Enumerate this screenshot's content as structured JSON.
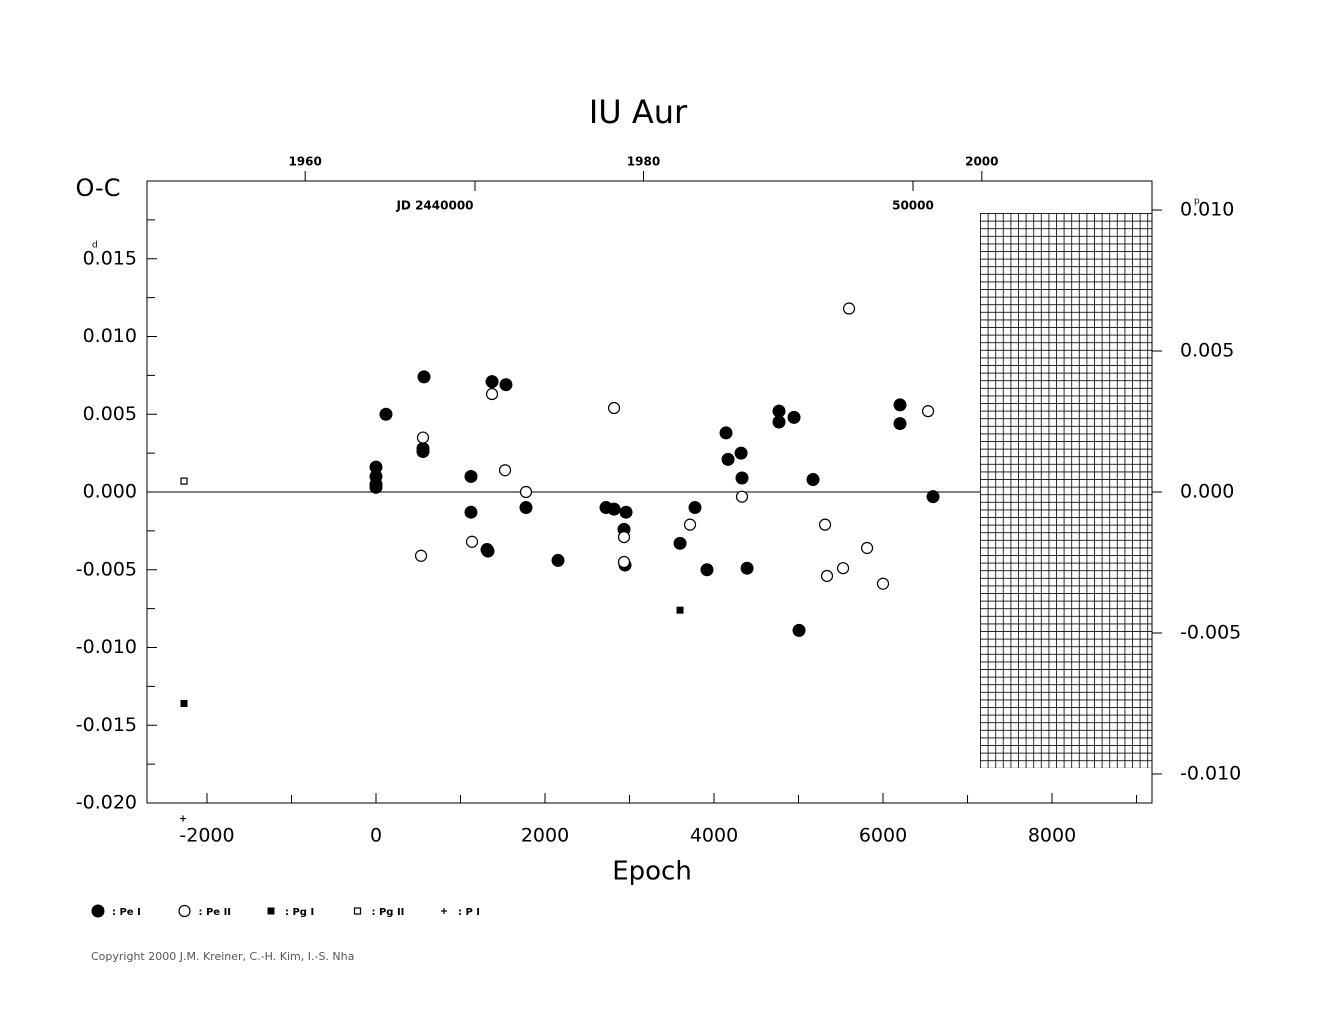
{
  "chart_data": {
    "type": "scatter",
    "title": "IU Aur",
    "y_label": "O-C",
    "y_unit": "d",
    "y2_unit": "p",
    "x_label": "Epoch",
    "xlim": [
      -2710,
      9183
    ],
    "xticks": [
      -2000,
      0,
      2000,
      4000,
      6000,
      8000
    ],
    "xticks_minor": [
      -1000,
      1000,
      3000,
      5000,
      7000,
      9000
    ],
    "ylim": [
      -0.02,
      0.02
    ],
    "yticks": [
      {
        "value": -0.02,
        "label": "-0.020"
      },
      {
        "value": -0.015,
        "label": "-0.015"
      },
      {
        "value": -0.01,
        "label": "-0.010"
      },
      {
        "value": -0.005,
        "label": "-0.005"
      },
      {
        "value": 0.0,
        "label": "0.000"
      },
      {
        "value": 0.005,
        "label": "0.005"
      },
      {
        "value": 0.01,
        "label": "0.010"
      },
      0.015
    ],
    "yticks_minor": [
      -0.0175,
      -0.0125,
      -0.0075,
      -0.0025,
      0.0025,
      0.0075,
      0.0125,
      0.0175
    ],
    "y2lim": [
      -0.01103,
      0.01103
    ],
    "y2ticks": [
      {
        "value": -0.01,
        "label": "-0.010"
      },
      {
        "value": -0.005,
        "label": "-0.005"
      },
      {
        "value": 0.0,
        "label": "0.000"
      },
      {
        "value": 0.005,
        "label": "0.005"
      },
      {
        "value": 0.01,
        "label": "0.010"
      }
    ],
    "x2lim": [
      1950.65,
      2010.06
    ],
    "x2ticks": [
      1960,
      1980,
      2000
    ],
    "jdlim": [
      2432511,
      2455457
    ],
    "jdticks": [
      {
        "value": 2440000,
        "label": "JD 2440000"
      },
      {
        "value": 2450000,
        "label": "50000"
      }
    ],
    "series": [
      {
        "name": ": Pe I",
        "marker": "circle-filled",
        "color": "#000000",
        "x": [
          0,
          0,
          0,
          0,
          118,
          568,
          556,
          556,
          1124,
          1124,
          1314,
          1325,
          1373,
          1538,
          1775,
          2154,
          2722,
          2817,
          2935,
          2959,
          2947,
          3598,
          3775,
          3917,
          4142,
          4166,
          4320,
          4331,
          4391,
          4769,
          4769,
          4947,
          5006,
          5172,
          6201,
          6201,
          6592
        ],
        "values": [
          0.0016,
          0.001,
          0.0005,
          0.0003,
          0.005,
          0.0074,
          0.0028,
          0.0026,
          0.001,
          -0.0013,
          -0.0037,
          -0.0038,
          0.0071,
          0.0069,
          -0.001,
          -0.0044,
          -0.001,
          -0.0011,
          -0.0024,
          -0.0013,
          -0.0047,
          -0.0033,
          -0.001,
          -0.005,
          0.0038,
          0.0021,
          0.0025,
          0.0009,
          -0.0049,
          0.0052,
          0.0045,
          0.0048,
          -0.0089,
          0.0008,
          0.0056,
          0.0044,
          -0.0003
        ]
      },
      {
        "name": ": Pe II",
        "marker": "circle-open",
        "color": "#000000",
        "x": [
          533,
          556,
          1136,
          1373,
          1527,
          1775,
          2817,
          2935,
          2935,
          3716,
          4331,
          5314,
          5337,
          5527,
          5598,
          5811,
          6000,
          6533
        ],
        "values": [
          -0.0041,
          0.0035,
          -0.0032,
          0.0063,
          0.0014,
          0.0,
          0.0054,
          -0.0029,
          -0.0045,
          -0.0021,
          -0.0003,
          -0.0021,
          -0.0054,
          -0.0049,
          0.0118,
          -0.0036,
          -0.0059,
          0.0052
        ]
      },
      {
        "name": ": Pg I",
        "marker": "square-filled",
        "color": "#000000",
        "x": [
          -2272,
          3598
        ],
        "values": [
          -0.0136,
          -0.0076
        ]
      },
      {
        "name": ": Pg II",
        "marker": "square-open",
        "color": "#000000",
        "x": [
          -2272
        ],
        "values": [
          0.0007
        ]
      },
      {
        "name": ": P I",
        "marker": "plus",
        "color": "#000000",
        "x": [
          -2284
        ],
        "values": [
          -0.021
        ]
      }
    ],
    "copyright": "Copyright 2000 J.M. Kreiner, C.-H. Kim, I.-S. Nha"
  }
}
